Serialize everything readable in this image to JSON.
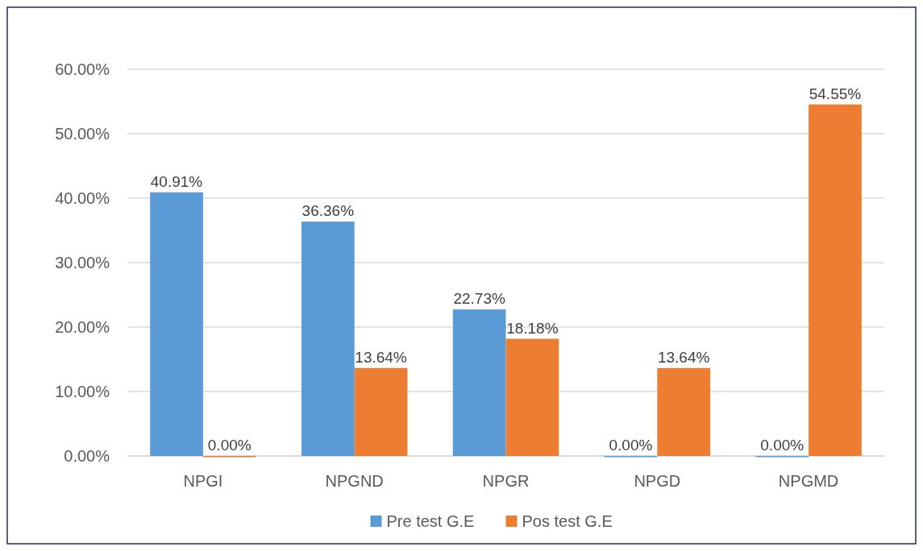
{
  "chart_data": {
    "type": "bar",
    "categories": [
      "NPGI",
      "NPGND",
      "NPGR",
      "NPGD",
      "NPGMD"
    ],
    "series": [
      {
        "name": "Pre test G.E",
        "color": "#5b9bd5",
        "values": [
          40.91,
          36.36,
          22.73,
          0,
          0
        ],
        "value_labels": [
          "40.91%",
          "36.36%",
          "22.73%",
          "0.00%",
          "0.00%"
        ]
      },
      {
        "name": "Pos test G.E",
        "color": "#ed7d31",
        "values": [
          0,
          13.64,
          18.18,
          13.64,
          54.55
        ],
        "value_labels": [
          "0.00%",
          "13.64%",
          "18.18%",
          "13.64%",
          "54.55%"
        ]
      }
    ],
    "ylim": [
      0,
      60
    ],
    "yticks": [
      {
        "value": 0,
        "label": "0.00%"
      },
      {
        "value": 10,
        "label": "10.00%"
      },
      {
        "value": 20,
        "label": "20.00%"
      },
      {
        "value": 30,
        "label": "30.00%"
      },
      {
        "value": 40,
        "label": "40.00%"
      },
      {
        "value": 50,
        "label": "50.00%"
      },
      {
        "value": 60,
        "label": "60.00%"
      }
    ],
    "grid": "y",
    "legend": "bottom"
  }
}
